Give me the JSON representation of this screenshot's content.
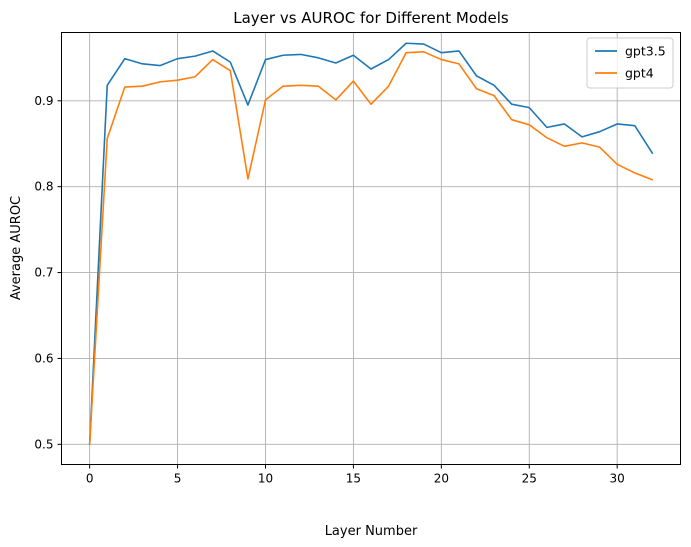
{
  "chart_data": {
    "type": "line",
    "title": "Layer vs AUROC for Different Models",
    "xlabel": "Layer Number",
    "ylabel": "Average AUROC",
    "xlim": [
      -1.6,
      33.6
    ],
    "ylim": [
      0.4765,
      0.9795
    ],
    "xticks": [
      0,
      5,
      10,
      15,
      20,
      25,
      30
    ],
    "yticks": [
      0.5,
      0.6,
      0.7,
      0.8,
      0.9
    ],
    "ytick_labels": [
      "0.5",
      "0.6",
      "0.7",
      "0.8",
      "0.9"
    ],
    "grid": true,
    "legend_position": "top-right",
    "x": [
      0,
      1,
      2,
      3,
      4,
      5,
      6,
      7,
      8,
      9,
      10,
      11,
      12,
      13,
      14,
      15,
      16,
      17,
      18,
      19,
      20,
      21,
      22,
      23,
      24,
      25,
      26,
      27,
      28,
      29,
      30,
      31,
      32
    ],
    "series": [
      {
        "name": "gpt3.5",
        "color": "#1f77b4",
        "values": [
          0.5,
          0.918,
          0.949,
          0.943,
          0.941,
          0.949,
          0.952,
          0.958,
          0.945,
          0.895,
          0.948,
          0.953,
          0.954,
          0.95,
          0.944,
          0.953,
          0.937,
          0.948,
          0.967,
          0.966,
          0.956,
          0.958,
          0.929,
          0.918,
          0.896,
          0.892,
          0.869,
          0.873,
          0.858,
          0.864,
          0.873,
          0.871,
          0.839
        ]
      },
      {
        "name": "gpt4",
        "color": "#ff7f0e",
        "values": [
          0.5,
          0.856,
          0.916,
          0.917,
          0.922,
          0.924,
          0.928,
          0.948,
          0.935,
          0.809,
          0.901,
          0.917,
          0.918,
          0.917,
          0.901,
          0.923,
          0.896,
          0.917,
          0.956,
          0.957,
          0.948,
          0.943,
          0.914,
          0.906,
          0.878,
          0.872,
          0.857,
          0.847,
          0.851,
          0.846,
          0.826,
          0.816,
          0.808
        ]
      }
    ]
  }
}
